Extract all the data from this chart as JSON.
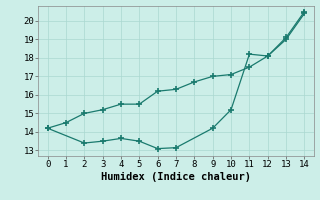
{
  "line1_x": [
    0,
    1,
    2,
    3,
    4,
    5,
    6,
    7,
    8,
    9,
    10,
    11,
    12,
    13,
    14
  ],
  "line1_y": [
    14.2,
    14.5,
    15.0,
    15.2,
    15.5,
    15.5,
    16.2,
    16.3,
    16.7,
    17.0,
    17.1,
    17.5,
    18.1,
    19.0,
    20.4
  ],
  "line2_x": [
    0,
    2,
    3,
    4,
    5,
    6,
    7,
    9,
    10,
    11,
    12,
    13,
    14
  ],
  "line2_y": [
    14.2,
    13.4,
    13.5,
    13.65,
    13.5,
    13.1,
    13.15,
    14.2,
    15.2,
    18.2,
    18.1,
    19.1,
    20.5
  ],
  "line_color": "#1a7a6e",
  "bg_color": "#cceee8",
  "grid_color": "#aad8d0",
  "xlabel": "Humidex (Indice chaleur)",
  "xlim": [
    -0.5,
    14.5
  ],
  "ylim": [
    12.7,
    20.8
  ],
  "xticks": [
    0,
    1,
    2,
    3,
    4,
    5,
    6,
    7,
    8,
    9,
    10,
    11,
    12,
    13,
    14
  ],
  "yticks": [
    13,
    14,
    15,
    16,
    17,
    18,
    19,
    20
  ],
  "xlabel_fontsize": 7.5,
  "tick_fontsize": 6.5,
  "marker": "+",
  "markersize": 4,
  "markeredgewidth": 1.2,
  "linewidth": 0.9
}
